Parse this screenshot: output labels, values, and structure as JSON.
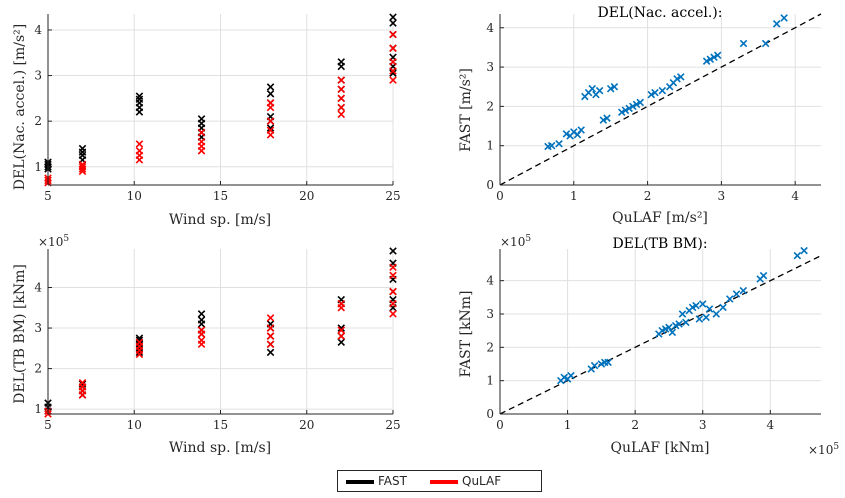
{
  "colors": {
    "fast": "#000000",
    "qulaf": "#ff0000",
    "scatter": "#0072bd",
    "grid": "#e0e0e0",
    "axis": "#262626"
  },
  "legend": {
    "items": [
      {
        "label": "FAST",
        "color": "#000000"
      },
      {
        "label": "QuLAF",
        "color": "#ff0000"
      }
    ]
  },
  "chart_data": [
    {
      "type": "scatter",
      "title": "",
      "xlabel": "Wind sp. [m/s]",
      "ylabel": "DEL(Nac. accel.) [m/s²]",
      "xlim": [
        5,
        25
      ],
      "ylim": [
        0.6,
        4.35
      ],
      "xticks": [
        5,
        10,
        15,
        20,
        25
      ],
      "yticks": [
        1,
        2,
        3,
        4
      ],
      "grid": true,
      "series": [
        {
          "name": "FAST",
          "color": "#000000",
          "marker": "x",
          "x": [
            5,
            5,
            5,
            5,
            7,
            7,
            7,
            7,
            10.3,
            10.3,
            10.3,
            10.3,
            10.3,
            13.9,
            13.9,
            13.9,
            13.9,
            13.9,
            17.9,
            17.9,
            17.9,
            17.9,
            17.9,
            17.9,
            22,
            22,
            22,
            22,
            22,
            22,
            25,
            25,
            25,
            25,
            25,
            25,
            25
          ],
          "y": [
            0.95,
            1.0,
            1.05,
            1.1,
            1.15,
            1.25,
            1.32,
            1.4,
            2.2,
            2.3,
            2.4,
            2.48,
            2.55,
            1.65,
            1.75,
            1.85,
            1.95,
            2.05,
            1.85,
            2.0,
            2.1,
            2.4,
            2.6,
            2.75,
            2.3,
            2.5,
            2.7,
            2.9,
            3.2,
            3.3,
            3.05,
            3.2,
            3.4,
            3.6,
            3.9,
            4.15,
            4.28
          ]
        },
        {
          "name": "QuLAF",
          "color": "#ff0000",
          "marker": "x",
          "x": [
            5,
            5,
            5,
            7,
            7,
            7,
            7,
            10.3,
            10.3,
            10.3,
            10.3,
            13.9,
            13.9,
            13.9,
            13.9,
            17.9,
            17.9,
            17.9,
            17.9,
            17.9,
            22,
            22,
            22,
            22,
            22,
            25,
            25,
            25,
            25,
            25
          ],
          "y": [
            0.65,
            0.7,
            0.75,
            0.9,
            0.95,
            1.0,
            1.05,
            1.15,
            1.25,
            1.35,
            1.5,
            1.35,
            1.45,
            1.55,
            1.75,
            1.7,
            1.8,
            2.0,
            2.3,
            2.4,
            2.15,
            2.3,
            2.5,
            2.7,
            2.9,
            2.9,
            3.1,
            3.3,
            3.6,
            3.9
          ]
        }
      ]
    },
    {
      "type": "scatter",
      "title": "DEL(Nac. accel.):",
      "xlabel": "QuLAF [m/s²]",
      "ylabel": "FAST [m/s²]",
      "xlim": [
        0,
        4.35
      ],
      "ylim": [
        0,
        4.35
      ],
      "xticks": [
        0,
        1,
        2,
        3,
        4
      ],
      "yticks": [
        0,
        1,
        2,
        3,
        4
      ],
      "grid": true,
      "reference_line": "y = x (dashed)",
      "series": [
        {
          "name": "",
          "color": "#0072bd",
          "marker": "x",
          "x": [
            0.65,
            0.7,
            0.8,
            0.9,
            0.95,
            1.0,
            1.05,
            1.1,
            1.15,
            1.2,
            1.25,
            1.3,
            1.35,
            1.4,
            1.5,
            1.45,
            1.55,
            1.65,
            1.7,
            1.75,
            1.8,
            1.85,
            1.9,
            2.05,
            2.1,
            2.2,
            2.3,
            2.35,
            2.4,
            2.45,
            2.8,
            2.85,
            2.9,
            2.95,
            3.3,
            3.6,
            3.75,
            3.85
          ],
          "y": [
            0.98,
            1.0,
            1.05,
            1.3,
            1.25,
            1.35,
            1.28,
            1.4,
            2.25,
            2.35,
            2.45,
            2.3,
            2.4,
            1.65,
            2.45,
            1.7,
            2.5,
            1.85,
            1.9,
            1.95,
            2.0,
            2.05,
            2.1,
            2.3,
            2.35,
            2.4,
            2.5,
            2.6,
            2.7,
            2.75,
            3.15,
            3.2,
            3.25,
            3.3,
            3.6,
            3.6,
            4.1,
            4.25
          ]
        }
      ]
    },
    {
      "type": "scatter",
      "title": "",
      "xlabel": "Wind sp. [m/s]",
      "ylabel": "DEL(TB BM) [kNm]",
      "y_multiplier": "×10^5",
      "xlim": [
        5,
        25
      ],
      "ylim": [
        0.88,
        4.95
      ],
      "xticks": [
        5,
        10,
        15,
        20,
        25
      ],
      "yticks": [
        1,
        2,
        3,
        4
      ],
      "grid": true,
      "series": [
        {
          "name": "FAST",
          "color": "#000000",
          "marker": "x",
          "x": [
            5,
            5,
            5,
            7,
            7,
            7,
            7,
            10.3,
            10.3,
            10.3,
            10.3,
            10.3,
            13.9,
            13.9,
            13.9,
            13.9,
            13.9,
            17.9,
            17.9,
            17.9,
            17.9,
            17.9,
            22,
            22,
            22,
            22,
            22,
            25,
            25,
            25,
            25,
            25,
            25
          ],
          "y": [
            0.95,
            1.05,
            1.15,
            1.35,
            1.45,
            1.55,
            1.62,
            2.4,
            2.5,
            2.6,
            2.7,
            2.75,
            2.85,
            2.95,
            3.1,
            3.2,
            3.35,
            2.4,
            2.6,
            2.8,
            3.0,
            3.1,
            2.65,
            2.8,
            3.0,
            3.6,
            3.7,
            3.5,
            3.7,
            3.9,
            4.2,
            4.6,
            4.9
          ]
        },
        {
          "name": "QuLAF",
          "color": "#ff0000",
          "marker": "x",
          "x": [
            5,
            5,
            7,
            7,
            7,
            7,
            10.3,
            10.3,
            10.3,
            10.3,
            13.9,
            13.9,
            13.9,
            13.9,
            17.9,
            17.9,
            17.9,
            17.9,
            22,
            22,
            22,
            22,
            25,
            25,
            25,
            25,
            25
          ],
          "y": [
            0.88,
            0.95,
            1.35,
            1.45,
            1.55,
            1.65,
            2.35,
            2.45,
            2.55,
            2.65,
            2.6,
            2.7,
            2.85,
            2.95,
            2.6,
            2.8,
            3.0,
            3.25,
            2.8,
            2.95,
            3.5,
            3.6,
            3.35,
            3.6,
            3.9,
            4.3,
            4.5
          ]
        }
      ]
    },
    {
      "type": "scatter",
      "title": "DEL(TB BM):",
      "xlabel": "QuLAF [kNm]",
      "ylabel": "FAST [kNm]",
      "x_multiplier": "×10^5",
      "y_multiplier": "×10^5",
      "xlim": [
        0,
        4.75
      ],
      "ylim": [
        0,
        4.95
      ],
      "xticks": [
        0,
        1,
        2,
        3,
        4
      ],
      "yticks": [
        0,
        1,
        2,
        3,
        4
      ],
      "grid": true,
      "reference_line": "y = x (dashed)",
      "series": [
        {
          "name": "",
          "color": "#0072bd",
          "marker": "x",
          "x": [
            0.9,
            0.95,
            1.0,
            1.05,
            1.35,
            1.4,
            1.5,
            1.55,
            1.6,
            2.35,
            2.4,
            2.45,
            2.5,
            2.55,
            2.6,
            2.65,
            2.7,
            2.75,
            2.8,
            2.85,
            2.9,
            2.95,
            3.0,
            3.05,
            3.1,
            3.2,
            3.3,
            3.4,
            3.5,
            3.6,
            3.85,
            3.9,
            4.4,
            4.5
          ],
          "y": [
            1.0,
            1.1,
            1.05,
            1.15,
            1.35,
            1.45,
            1.5,
            1.55,
            1.55,
            2.4,
            2.5,
            2.55,
            2.6,
            2.45,
            2.65,
            2.7,
            3.0,
            2.75,
            3.1,
            3.2,
            3.25,
            2.85,
            3.3,
            2.9,
            3.15,
            3.0,
            3.2,
            3.45,
            3.6,
            3.7,
            4.05,
            4.15,
            4.75,
            4.9
          ]
        }
      ]
    }
  ]
}
